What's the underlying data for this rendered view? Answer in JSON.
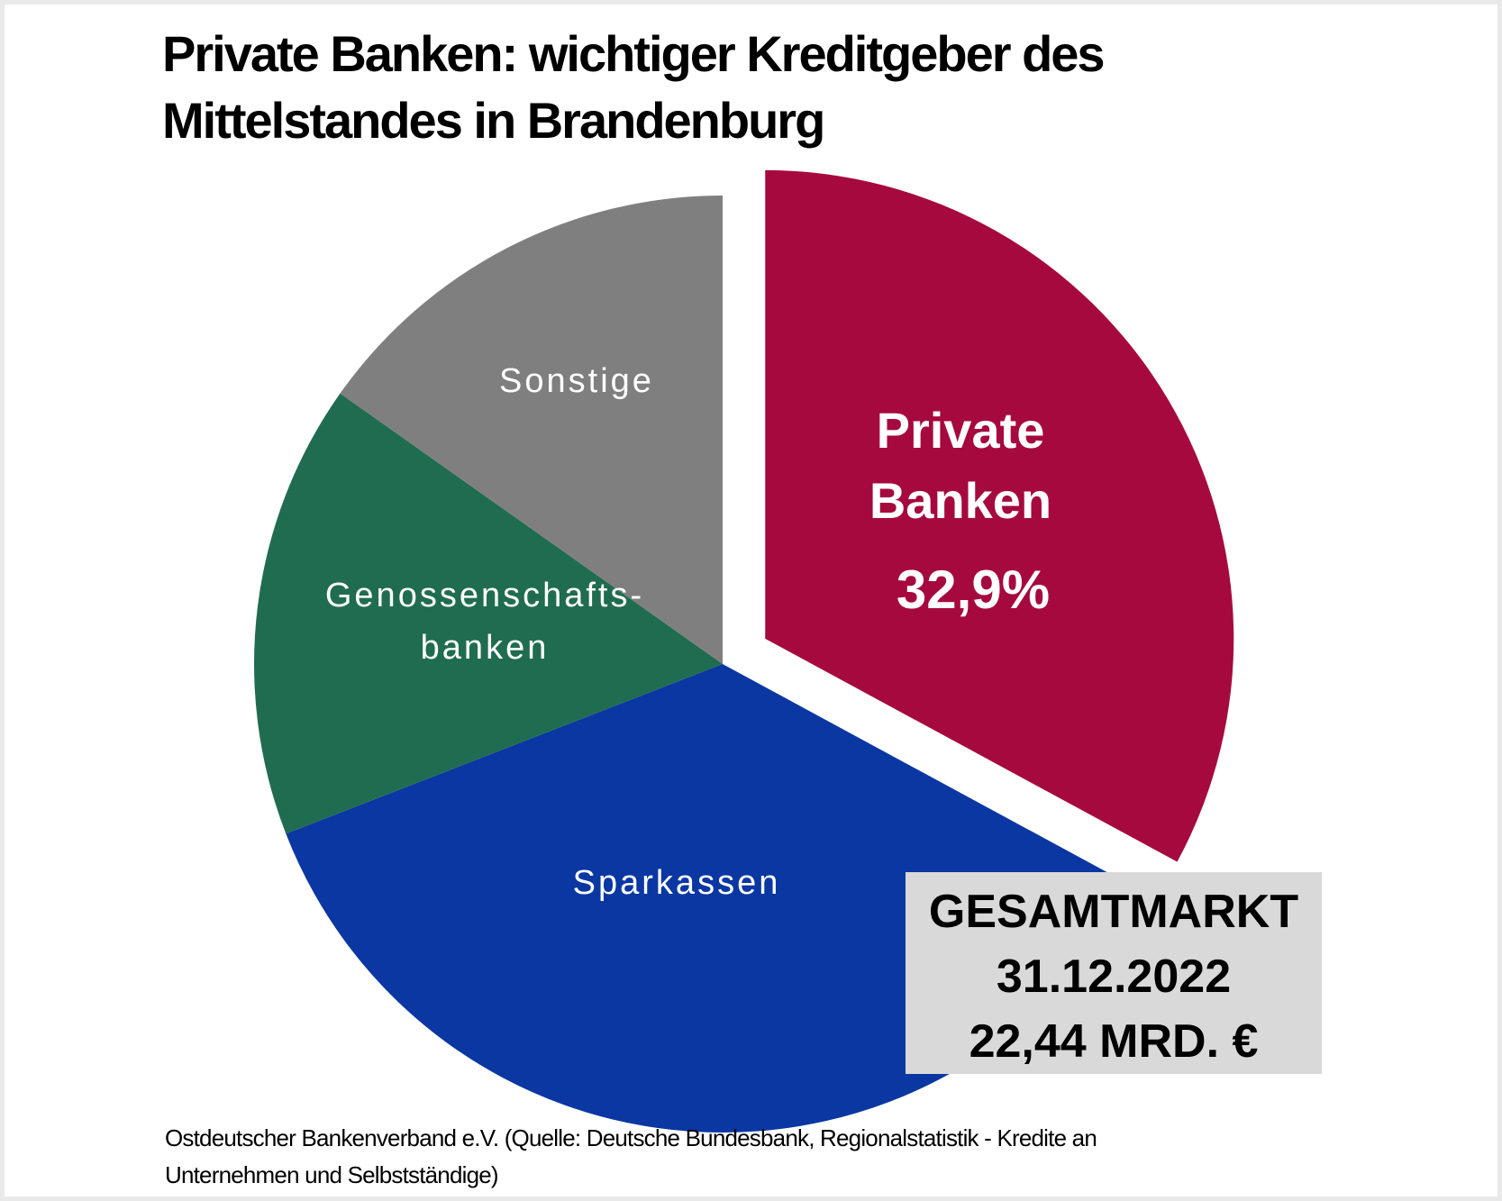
{
  "header": {
    "title_line1": "Private Banken: wichtiger Kreditgeber des",
    "title_line2": "Mittelstandes in Brandenburg"
  },
  "labels": {
    "sonstige": "Sonstige",
    "genossenschaften_l1": "Genossenschafts-",
    "genossenschaften_l2": "banken",
    "sparkassen": "Sparkassen",
    "private_l1": "Private",
    "private_l2": "Banken",
    "private_value": "32,9%"
  },
  "infobox": {
    "line1": "GESAMTMARKT",
    "line2": "31.12.2022",
    "line3": "22,44 MRD. €",
    "background": "#d9d9d9"
  },
  "footer": {
    "line1": "Ostdeutscher Bankenverband e.V. (Quelle: Deutsche Bundesbank, Regionalstatistik - Kredite an",
    "line2": "Unternehmen und Selbstständige)"
  },
  "chart_data": {
    "type": "pie",
    "title": "Private Banken: wichtiger Kreditgeber des Mittelstandes in Brandenburg",
    "categories": [
      "Private Banken",
      "Sparkassen",
      "Genossenschaftsbanken",
      "Sonstige"
    ],
    "values": [
      32.9,
      36.2,
      15.7,
      15.2
    ],
    "value_labels_shown": {
      "Private Banken": "32,9%"
    },
    "colors": [
      "#a6093d",
      "#0a37a2",
      "#206c50",
      "#7f7f7f"
    ],
    "start_angle_deg": 0,
    "direction": "clockwise",
    "exploded_slice": "Private Banken",
    "legend": "none",
    "annotation": "GESAMTMARKT 31.12.2022 22,44 MRD. €",
    "total_market_date": "31.12.2022",
    "total_market_value": "22,44 MRD. €",
    "source": "Ostdeutscher Bankenverband e.V. (Quelle: Deutsche Bundesbank, Regionalstatistik - Kredite an Unternehmen und Selbstständige)"
  }
}
